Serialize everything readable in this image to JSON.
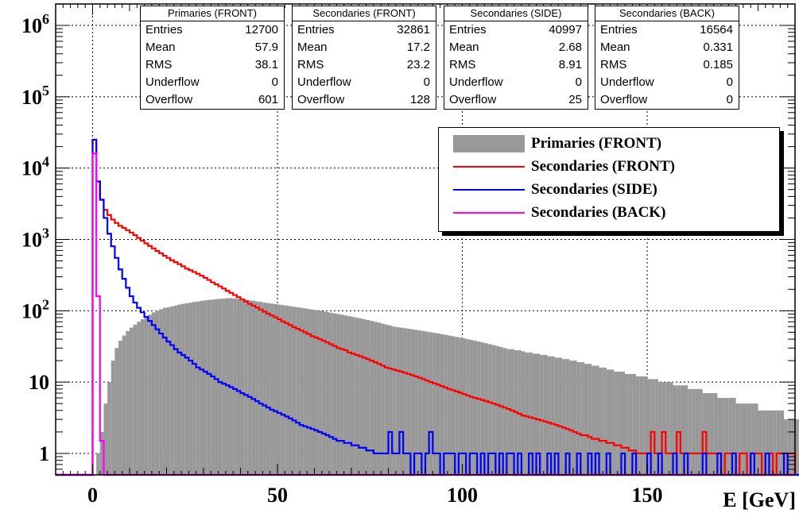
{
  "chart_data": {
    "type": "histogram",
    "xlabel": "E [GeV]",
    "ylabel": "",
    "x_ticks": [
      "0",
      "50",
      "100",
      "150"
    ],
    "y_ticks": [
      "1",
      "10",
      "10^2",
      "10^3",
      "10^4",
      "10^5",
      "10^6"
    ],
    "xlim": [
      -10,
      190
    ],
    "ylim": [
      0.5,
      2000000
    ],
    "yscale": "log",
    "grid": true,
    "bin_width": 1,
    "legend_position": "upper right",
    "series": [
      {
        "name": "Primaries (FRONT)",
        "style": "filled",
        "color": "#999999",
        "bins_start": 0,
        "values": [
          0.5,
          1,
          2,
          5,
          10,
          20,
          30,
          38,
          45,
          52,
          58,
          64,
          70,
          76,
          82,
          88,
          95,
          100,
          105,
          110,
          112,
          115,
          118,
          122,
          125,
          128,
          130,
          133,
          135,
          138,
          140,
          142,
          143,
          145,
          147,
          148,
          150,
          150,
          148,
          146,
          145,
          143,
          140,
          138,
          135,
          133,
          130,
          128,
          126,
          124,
          122,
          120,
          118,
          116,
          114,
          112,
          110,
          108,
          106,
          104,
          102,
          100,
          98,
          96,
          94,
          92,
          90,
          88,
          86,
          84,
          82,
          80,
          78,
          76,
          74,
          72,
          70,
          68,
          66,
          64,
          62,
          60,
          59,
          58,
          57,
          56,
          55,
          54,
          53,
          52,
          51,
          50,
          49,
          48,
          47,
          46,
          45,
          44,
          43,
          42,
          41,
          40,
          39,
          38,
          37,
          36,
          35,
          34,
          33,
          32,
          31,
          30,
          29,
          29,
          28,
          28,
          27,
          26,
          26,
          25,
          25,
          24,
          24,
          23,
          23,
          22,
          22,
          21,
          21,
          20,
          20,
          19,
          19,
          18,
          18,
          17,
          17,
          16,
          16,
          15,
          15,
          14,
          14,
          14,
          13,
          13,
          13,
          12,
          12,
          12,
          11,
          11,
          11,
          10,
          10,
          10,
          10,
          9,
          9,
          9,
          9,
          8,
          8,
          8,
          8,
          7,
          7,
          7,
          7,
          6,
          6,
          6,
          6,
          6,
          5,
          5,
          5,
          5,
          5,
          5,
          4,
          4,
          4,
          4,
          4,
          4,
          4,
          3,
          3,
          3,
          3,
          3
        ]
      },
      {
        "name": "Secondaries (FRONT)",
        "style": "line",
        "color": "#ff0000",
        "bins_start": 0,
        "values": [
          25000,
          6500,
          3600,
          2600,
          2200,
          1900,
          1700,
          1550,
          1450,
          1350,
          1250,
          1150,
          1050,
          960,
          880,
          810,
          750,
          690,
          640,
          590,
          550,
          510,
          480,
          450,
          420,
          390,
          370,
          350,
          330,
          310,
          290,
          270,
          250,
          235,
          220,
          205,
          190,
          178,
          166,
          155,
          145,
          135,
          125,
          118,
          111,
          104,
          97,
          91,
          86,
          81,
          76,
          71,
          67,
          63,
          59,
          56,
          53,
          50,
          47,
          44,
          42,
          40,
          38,
          36,
          34,
          32,
          30,
          29,
          28,
          26,
          25,
          24,
          23,
          22,
          21,
          20,
          19,
          18,
          17,
          16,
          15.5,
          15,
          14.5,
          14,
          13.5,
          13,
          12.5,
          12,
          11.5,
          11,
          10.5,
          10,
          9.6,
          9.2,
          8.8,
          8.4,
          8,
          7.7,
          7.4,
          7.1,
          6.8,
          6.5,
          6.2,
          6,
          5.8,
          5.6,
          5.4,
          5.2,
          5,
          4.8,
          4.6,
          4.4,
          4.2,
          4,
          3.8,
          3.6,
          3.4,
          3.3,
          3.2,
          3.1,
          3,
          2.9,
          2.8,
          2.7,
          2.6,
          2.5,
          2.4,
          2.3,
          2.2,
          2.1,
          2,
          1.9,
          1.8,
          1.8,
          1.7,
          1.6,
          1.6,
          1.5,
          1.5,
          1.4,
          1.4,
          1.3,
          1.3,
          1.2,
          1.2,
          1.1,
          1.1,
          1,
          1,
          1,
          1,
          2,
          1,
          1,
          2,
          1,
          1,
          1,
          2,
          1,
          1,
          1,
          1,
          1,
          1,
          2,
          1,
          1,
          1,
          1,
          0.5,
          1,
          1,
          1,
          0.5,
          1,
          1,
          0.5,
          1,
          1,
          1,
          0.5,
          1,
          1,
          0.5,
          1,
          1,
          0.5,
          1,
          1
        ]
      },
      {
        "name": "Secondaries (SIDE)",
        "style": "line",
        "color": "#0000ff",
        "bins_start": 0,
        "values": [
          25000,
          6500,
          3600,
          2000,
          1200,
          800,
          550,
          380,
          280,
          210,
          160,
          130,
          110,
          95,
          82,
          72,
          63,
          55,
          48,
          42,
          37,
          33,
          29,
          26,
          24,
          22,
          20,
          18,
          16,
          15,
          14,
          13,
          12,
          11,
          10,
          9.5,
          9,
          8.5,
          8,
          7.5,
          7,
          6.6,
          6.2,
          5.8,
          5.4,
          5,
          4.7,
          4.4,
          4.1,
          3.9,
          3.7,
          3.5,
          3.3,
          3.1,
          2.9,
          2.7,
          2.5,
          2.4,
          2.3,
          2.2,
          2.1,
          2,
          1.9,
          1.8,
          1.7,
          1.6,
          1.5,
          1.5,
          1.4,
          1.4,
          1.3,
          1.3,
          1.2,
          1.2,
          1.1,
          1.1,
          1,
          1,
          1,
          1,
          2,
          1,
          1,
          2,
          1,
          1,
          0.5,
          1,
          1,
          0.5,
          1,
          2,
          1,
          1,
          0.5,
          1,
          1,
          1,
          0.5,
          1,
          1,
          0.5,
          1,
          1,
          0.5,
          1,
          0.5,
          1,
          1,
          0.5,
          1,
          0.5,
          1,
          1,
          0.5,
          1,
          0.5,
          0.5,
          1,
          0.5,
          1,
          0.5,
          0.5,
          1,
          0.5,
          1,
          0.5,
          0.5,
          1,
          0.5,
          0.5,
          1,
          0.5,
          0.5,
          1,
          0.5,
          1,
          0.5,
          0.5,
          1,
          0.5,
          0.5,
          0.5,
          1,
          0.5,
          0.5,
          1,
          0.5,
          0.5,
          0.5,
          1,
          0.5,
          0.5,
          1,
          0.5,
          0.5,
          0.5,
          1,
          0.5,
          0.5,
          1,
          0.5,
          0.5,
          0.5,
          0.5,
          1,
          0.5,
          0.5,
          0.5,
          1,
          0.5,
          0.5,
          0.5,
          1,
          0.5,
          0.5,
          0.5,
          0.5,
          1,
          0.5,
          0.5,
          0.5,
          1,
          0.5,
          0.5,
          0.5,
          0.5,
          1,
          0.5,
          0.5,
          0.5,
          0.5,
          1,
          0.5
        ]
      },
      {
        "name": "Secondaries (BACK)",
        "style": "line",
        "color": "#ff00ff",
        "bins_start": 0,
        "values": [
          16000,
          160,
          1.5
        ]
      }
    ]
  },
  "stats_boxes": [
    {
      "title": "Primaries (FRONT)",
      "rows": [
        [
          "Entries",
          "12700"
        ],
        [
          "Mean",
          "57.9"
        ],
        [
          "RMS",
          "38.1"
        ],
        [
          "Underflow",
          "0"
        ],
        [
          "Overflow",
          "601"
        ]
      ]
    },
    {
      "title": "Secondaries (FRONT)",
      "rows": [
        [
          "Entries",
          "32861"
        ],
        [
          "Mean",
          "17.2"
        ],
        [
          "RMS",
          "23.2"
        ],
        [
          "Underflow",
          "0"
        ],
        [
          "Overflow",
          "128"
        ]
      ]
    },
    {
      "title": "Secondaries (SIDE)",
      "rows": [
        [
          "Entries",
          "40997"
        ],
        [
          "Mean",
          "2.68"
        ],
        [
          "RMS",
          "8.91"
        ],
        [
          "Underflow",
          "0"
        ],
        [
          "Overflow",
          "25"
        ]
      ]
    },
    {
      "title": "Secondaries (BACK)",
      "rows": [
        [
          "Entries",
          "16564"
        ],
        [
          "Mean",
          "0.331"
        ],
        [
          "RMS",
          "0.185"
        ],
        [
          "Underflow",
          "0"
        ],
        [
          "Overflow",
          "0"
        ]
      ]
    }
  ]
}
